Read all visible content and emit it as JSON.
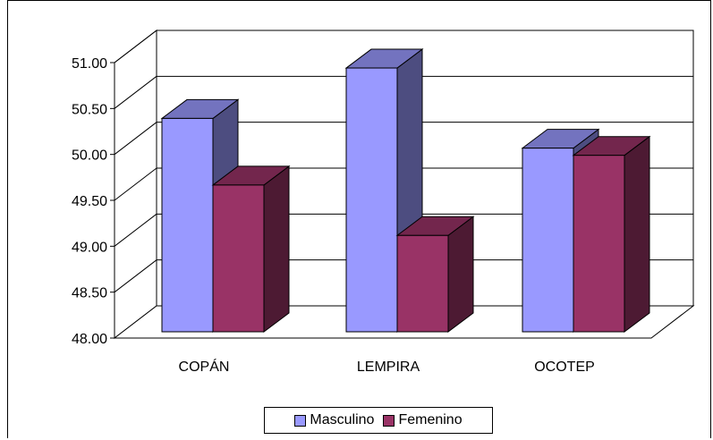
{
  "chart_data": {
    "type": "bar",
    "categories": [
      "COPÁN",
      "LEMPIRA",
      "OCOTEP"
    ],
    "series": [
      {
        "name": "Masculino",
        "values": [
          50.37,
          50.93,
          50.04
        ],
        "color": "#9999FF"
      },
      {
        "name": "Femenino",
        "values": [
          49.63,
          49.07,
          49.96
        ],
        "color": "#993366"
      }
    ],
    "ylim": [
      48.0,
      51.0
    ],
    "yticks": [
      "48.00",
      "48.50",
      "49.00",
      "49.50",
      "50.00",
      "50.50",
      "51.00"
    ],
    "grid": true,
    "legend_position": "bottom",
    "three_d": true
  },
  "colors": {
    "masculino_side": "#4D4D80",
    "masculino_top": "#7373BF",
    "femenino_side": "#4D1A33",
    "femenino_top": "#73264D"
  }
}
